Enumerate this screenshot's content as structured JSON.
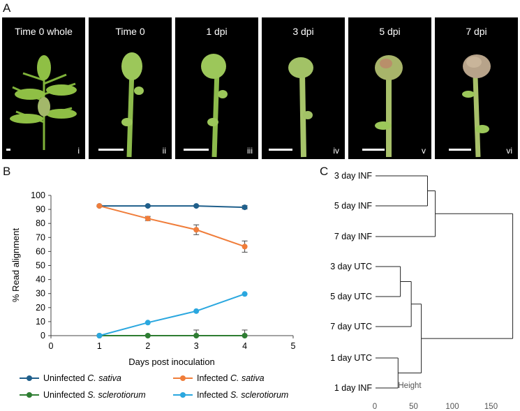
{
  "panels": {
    "a": "A",
    "b": "B",
    "c": "C"
  },
  "photos": [
    {
      "title": "Time 0 whole",
      "numeral": "i"
    },
    {
      "title": "Time 0",
      "numeral": "ii"
    },
    {
      "title": "1 dpi",
      "numeral": "iii"
    },
    {
      "title": "3 dpi",
      "numeral": "iv"
    },
    {
      "title": "5 dpi",
      "numeral": "v"
    },
    {
      "title": "7 dpi",
      "numeral": "vi"
    }
  ],
  "chart_data": [
    {
      "type": "line",
      "xlabel": "Days post inoculation",
      "ylabel": "% Read alignment",
      "xlim": [
        0,
        5
      ],
      "ylim": [
        0,
        100
      ],
      "xticks": [
        "0",
        "1",
        "2",
        "3",
        "4",
        "5"
      ],
      "yticks": [
        "0",
        "10",
        "20",
        "30",
        "40",
        "50",
        "60",
        "70",
        "80",
        "90",
        "100"
      ],
      "grid": false,
      "legend_position": "bottom",
      "series": [
        {
          "name": "Uninfected",
          "species": "C. sativa",
          "color": "#1f5f8b",
          "x": [
            1,
            2,
            3,
            4
          ],
          "y": [
            92.5,
            92.5,
            92.5,
            91.5
          ],
          "err": [
            0.5,
            0.5,
            0.5,
            1.2
          ]
        },
        {
          "name": "Infected",
          "species": "C. sativa",
          "color": "#f07d3a",
          "x": [
            1,
            2,
            3,
            4
          ],
          "y": [
            92.5,
            83.5,
            75.5,
            63.5
          ],
          "err": [
            0.5,
            1.5,
            3.5,
            4.0
          ]
        },
        {
          "name": "Uninfected",
          "species": "S. sclerotiorum",
          "color": "#2e7d32",
          "x": [
            1,
            2,
            3,
            4
          ],
          "y": [
            0,
            0,
            0,
            0
          ],
          "err": [
            0.2,
            0.5,
            4.0,
            4.0
          ]
        },
        {
          "name": "Infected",
          "species": "S. sclerotiorum",
          "color": "#2aa7df",
          "x": [
            1,
            2,
            3,
            4
          ],
          "y": [
            0,
            9.3,
            17.5,
            29.7
          ],
          "err": [
            0,
            0,
            0,
            0
          ]
        }
      ]
    },
    {
      "type": "dendrogram",
      "xlabel": "Height",
      "xlim": [
        0,
        180
      ],
      "xticks": [
        "0",
        "50",
        "100",
        "150"
      ],
      "leaves": [
        "3 day INF",
        "5 day INF",
        "7 day INF",
        "3 day UTC",
        "5 day UTC",
        "7 day UTC",
        "1 day UTC",
        "1 day INF"
      ],
      "merges": [
        {
          "a": "L0",
          "b": "L1",
          "height": 68
        },
        {
          "a": "M0",
          "b": "L2",
          "height": 78
        },
        {
          "a": "L3",
          "b": "L4",
          "height": 33
        },
        {
          "a": "M2",
          "b": "L5",
          "height": 47
        },
        {
          "a": "L6",
          "b": "L7",
          "height": 30
        },
        {
          "a": "M3",
          "b": "M4",
          "height": 60
        },
        {
          "a": "M1",
          "b": "M5",
          "height": 178
        }
      ]
    }
  ]
}
